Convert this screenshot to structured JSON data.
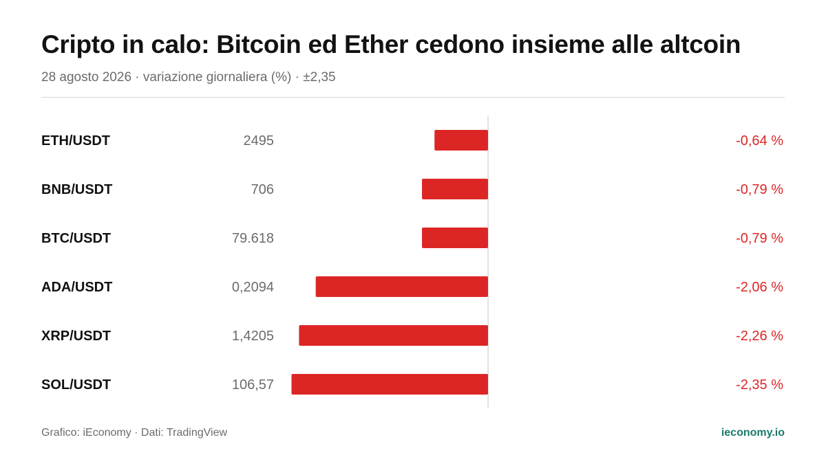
{
  "header": {
    "title": "Cripto in calo: Bitcoin ed Ether cedono insieme alle altcoin",
    "subtitle": "28 agosto 2026 · variazione giornaliera (%) · ±2,35"
  },
  "footer": {
    "source": "Grafico: iEconomy · Dati: TradingView",
    "brand": "ieconomy.io"
  },
  "colors": {
    "negative": "#dc2626",
    "brand": "#1a7a6b",
    "axis": "#d9d9d9"
  },
  "chart_data": {
    "type": "bar",
    "orientation": "horizontal",
    "categories": [
      "ETH/USDT",
      "BNB/USDT",
      "BTC/USDT",
      "ADA/USDT",
      "XRP/USDT",
      "SOL/USDT"
    ],
    "prices": [
      "2495",
      "706",
      "79.618",
      "0,2094",
      "1,4205",
      "106,57"
    ],
    "values": [
      -0.64,
      -0.79,
      -0.79,
      -2.06,
      -2.26,
      -2.35
    ],
    "value_labels": [
      "-0,64 %",
      "-0,79 %",
      "-0,79 %",
      "-2,06 %",
      "-2,26 %",
      "-2,35 %"
    ],
    "xlim": [
      -2.35,
      2.35
    ],
    "grid": false
  }
}
